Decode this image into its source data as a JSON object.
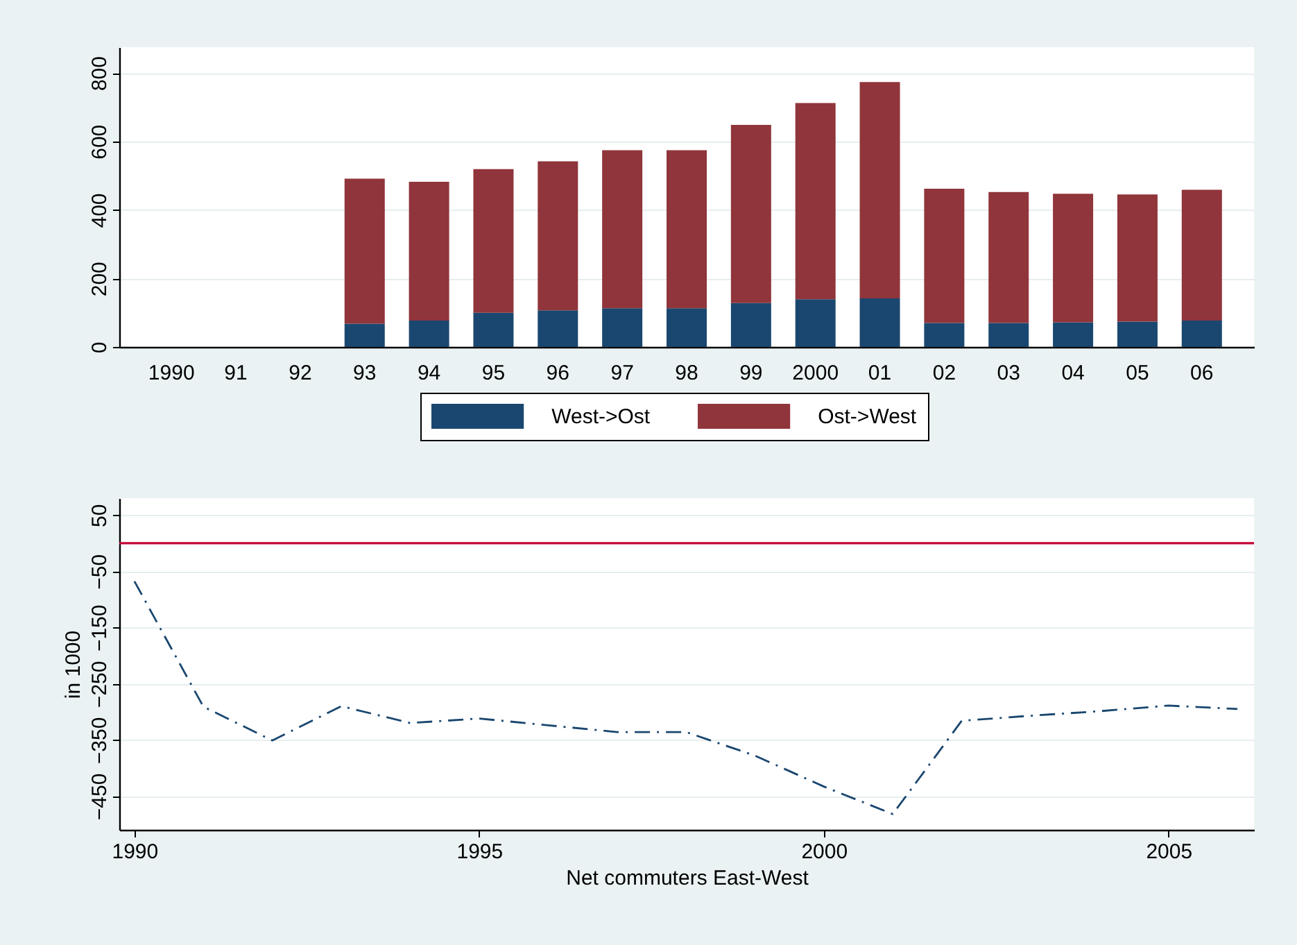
{
  "chart_data": [
    {
      "type": "bar",
      "stacked": true,
      "categories": [
        "1990",
        "91",
        "92",
        "93",
        "94",
        "95",
        "96",
        "97",
        "98",
        "99",
        "2000",
        "01",
        "02",
        "03",
        "04",
        "05",
        "06"
      ],
      "series": [
        {
          "name": "West->Ost",
          "color": "#1a476f",
          "values": [
            null,
            null,
            null,
            68,
            77,
            100,
            107,
            113,
            113,
            128,
            139,
            142,
            70,
            70,
            72,
            74,
            77
          ]
        },
        {
          "name": "Ost->West",
          "color": "#90353b",
          "values": [
            null,
            null,
            null,
            423,
            405,
            419,
            435,
            461,
            461,
            520,
            573,
            631,
            392,
            382,
            375,
            371,
            382
          ]
        }
      ],
      "ylim": [
        0,
        875
      ],
      "yticks": [
        0,
        200,
        400,
        600,
        800
      ],
      "grid": "y",
      "legend": "bottom"
    },
    {
      "type": "line",
      "x": [
        1990,
        1991,
        1992,
        1993,
        1994,
        1995,
        1996,
        1997,
        1998,
        1999,
        2000,
        2001,
        2002,
        2003,
        2004,
        2005,
        2006
      ],
      "series": [
        {
          "color": "#1a476f",
          "values": [
            -68,
            -291,
            -351,
            -290,
            -320,
            -312,
            -324,
            -336,
            -336,
            -378,
            -433,
            -482,
            -316,
            -307,
            -299,
            -289,
            -295
          ]
        }
      ],
      "xlabel": "Net commuters East-West",
      "ylabel": "in 1000",
      "xlim": [
        1989.78,
        2006.24
      ],
      "ylim": [
        -510,
        80
      ],
      "xticks": [
        1990,
        1995,
        2000,
        2005
      ],
      "yticks": [
        -450,
        -350,
        -250,
        -150,
        -50,
        50
      ],
      "grid": "y",
      "line_style": "dashed",
      "marker": "none",
      "ref_lines": [
        {
          "axis": "y",
          "value": 0,
          "color": "#c10534"
        }
      ]
    }
  ]
}
